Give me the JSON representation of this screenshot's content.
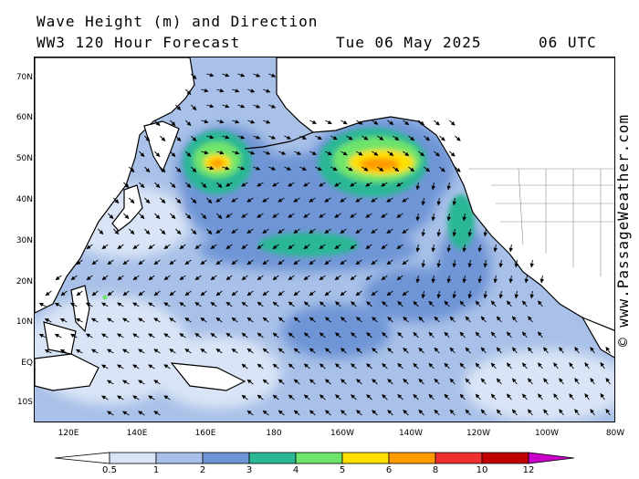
{
  "title_line1": "Wave Height (m) and Direction",
  "title_model": "WW3 120 Hour Forecast",
  "title_date": "Tue 06 May 2025",
  "title_time": "06 UTC",
  "credit": "© www.PassageWeather.com",
  "lat_labels": [
    "70N",
    "60N",
    "50N",
    "40N",
    "30N",
    "20N",
    "10N",
    "EQ",
    "10S"
  ],
  "lon_labels": [
    "120E",
    "140E",
    "160E",
    "180",
    "160W",
    "140W",
    "120W",
    "100W",
    "80W"
  ],
  "colorbar": {
    "ticks": [
      "0.5",
      "1",
      "2",
      "3",
      "4",
      "5",
      "6",
      "8",
      "10",
      "12"
    ],
    "colors": [
      "#ffffff",
      "#d9e4f6",
      "#a9c1e8",
      "#6f95d6",
      "#2bb795",
      "#6fe46a",
      "#ffe000",
      "#ff9a00",
      "#f03030",
      "#c00000",
      "#c800c8"
    ]
  },
  "colors": {
    "land": "#ffffff",
    "coast": "#000000"
  }
}
